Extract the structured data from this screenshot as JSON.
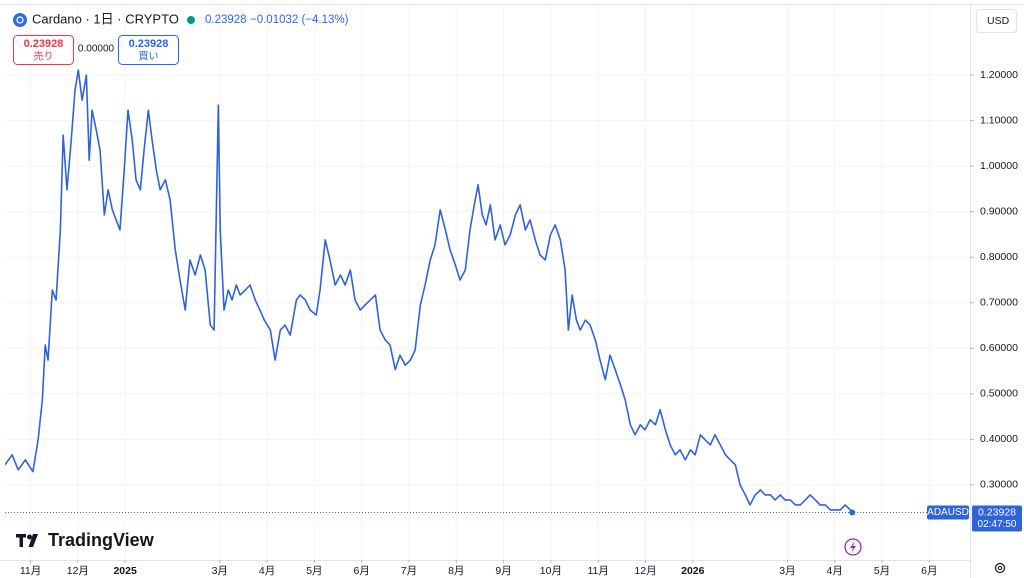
{
  "header": {
    "symbol": "Cardano · 1日 · CRYPTO",
    "price": "0.23928",
    "change": "−0.01032 (−4.13%)",
    "sell_price": "0.23928",
    "sell_label": "売り",
    "spread": "0.00000",
    "buy_price": "0.23928",
    "buy_label": "買い",
    "currency": "USD"
  },
  "branding": "TradingView",
  "chart_data": {
    "type": "line",
    "x": [
      10.46,
      10.61,
      10.74,
      10.89,
      11.05,
      11.16,
      11.25,
      11.31,
      11.37,
      11.46,
      11.54,
      11.63,
      11.69,
      11.77,
      11.86,
      11.94,
      12.01,
      12.09,
      12.18,
      12.24,
      12.3,
      12.39,
      12.47,
      12.56,
      12.64,
      12.73,
      12.81,
      12.89,
      12.98,
      13.06,
      13.15,
      13.23,
      13.32,
      13.4,
      13.49,
      13.57,
      13.66,
      13.74,
      13.85,
      13.95,
      14.06,
      14.16,
      14.27,
      14.37,
      14.48,
      14.59,
      14.69,
      14.8,
      14.88,
      14.97,
      15.01,
      15.09,
      15.18,
      15.26,
      15.35,
      15.43,
      15.54,
      15.64,
      15.75,
      15.85,
      15.94,
      16.07,
      16.17,
      16.28,
      16.38,
      16.49,
      16.62,
      16.7,
      16.81,
      16.91,
      17.04,
      17.12,
      17.23,
      17.33,
      17.44,
      17.55,
      17.65,
      17.76,
      17.86,
      17.97,
      18.07,
      18.18,
      18.29,
      18.39,
      18.5,
      18.6,
      18.71,
      18.81,
      18.92,
      19.03,
      19.13,
      19.24,
      19.34,
      19.45,
      19.55,
      19.66,
      19.77,
      19.87,
      19.98,
      20.08,
      20.19,
      20.29,
      20.4,
      20.46,
      20.55,
      20.63,
      20.72,
      20.82,
      20.93,
      21.03,
      21.14,
      21.25,
      21.35,
      21.46,
      21.56,
      21.67,
      21.77,
      21.88,
      21.99,
      22.09,
      22.2,
      22.3,
      22.37,
      22.45,
      22.54,
      22.62,
      22.73,
      22.83,
      22.94,
      23.04,
      23.15,
      23.25,
      23.36,
      23.47,
      23.57,
      23.68,
      23.78,
      23.89,
      23.99,
      24.1,
      24.21,
      24.31,
      24.42,
      24.52,
      24.63,
      24.73,
      24.84,
      24.95,
      25.05,
      25.16,
      25.26,
      25.37,
      25.47,
      25.58,
      25.69,
      25.79,
      25.9,
      26.0,
      26.11,
      26.21,
      26.32,
      26.43,
      26.53,
      26.64,
      26.74,
      26.85,
      26.95,
      27.06,
      27.17,
      27.27,
      27.38,
      27.48,
      27.59,
      27.69,
      27.8,
      27.91,
      28.01,
      28.12,
      28.22,
      28.33,
      28.37
    ],
    "series": [
      {
        "name": "ADAUSD",
        "color": "#2f63dc",
        "values": [
          0.344,
          0.366,
          0.333,
          0.355,
          0.329,
          0.399,
          0.487,
          0.607,
          0.574,
          0.728,
          0.706,
          0.86,
          1.068,
          0.948,
          1.057,
          1.167,
          1.211,
          1.145,
          1.2,
          1.013,
          1.123,
          1.079,
          1.035,
          0.893,
          0.948,
          0.904,
          0.882,
          0.86,
          0.991,
          1.123,
          1.057,
          0.97,
          0.948,
          1.035,
          1.123,
          1.057,
          0.991,
          0.948,
          0.97,
          0.926,
          0.816,
          0.75,
          0.684,
          0.794,
          0.761,
          0.805,
          0.772,
          0.651,
          0.64,
          1.134,
          0.86,
          0.684,
          0.728,
          0.706,
          0.739,
          0.717,
          0.728,
          0.739,
          0.706,
          0.684,
          0.662,
          0.64,
          0.574,
          0.64,
          0.651,
          0.629,
          0.706,
          0.717,
          0.706,
          0.684,
          0.673,
          0.728,
          0.838,
          0.794,
          0.739,
          0.761,
          0.739,
          0.772,
          0.706,
          0.684,
          0.695,
          0.706,
          0.717,
          0.64,
          0.618,
          0.607,
          0.553,
          0.585,
          0.563,
          0.574,
          0.596,
          0.695,
          0.739,
          0.794,
          0.827,
          0.904,
          0.86,
          0.816,
          0.783,
          0.75,
          0.772,
          0.86,
          0.926,
          0.959,
          0.893,
          0.871,
          0.915,
          0.838,
          0.871,
          0.827,
          0.849,
          0.893,
          0.915,
          0.86,
          0.882,
          0.838,
          0.805,
          0.794,
          0.849,
          0.871,
          0.838,
          0.772,
          0.64,
          0.717,
          0.662,
          0.64,
          0.662,
          0.651,
          0.618,
          0.574,
          0.531,
          0.585,
          0.553,
          0.52,
          0.487,
          0.432,
          0.41,
          0.432,
          0.421,
          0.443,
          0.432,
          0.465,
          0.421,
          0.388,
          0.366,
          0.377,
          0.355,
          0.377,
          0.366,
          0.41,
          0.399,
          0.388,
          0.41,
          0.388,
          0.366,
          0.355,
          0.344,
          0.3,
          0.278,
          0.256,
          0.278,
          0.289,
          0.278,
          0.278,
          0.267,
          0.278,
          0.267,
          0.267,
          0.256,
          0.256,
          0.267,
          0.278,
          0.267,
          0.256,
          0.256,
          0.245,
          0.245,
          0.245,
          0.256,
          0.245,
          0.23928
        ]
      }
    ],
    "xlim": [
      10.46,
      30.86
    ],
    "ylim": [
      0.135,
      1.354
    ],
    "xticks": [
      {
        "value": 11,
        "label": "11月"
      },
      {
        "value": 12,
        "label": "12月"
      },
      {
        "value": 13,
        "label": "2025"
      },
      {
        "value": 15,
        "label": "3月"
      },
      {
        "value": 16,
        "label": "4月"
      },
      {
        "value": 17,
        "label": "5月"
      },
      {
        "value": 18,
        "label": "6月"
      },
      {
        "value": 19,
        "label": "7月"
      },
      {
        "value": 20,
        "label": "8月"
      },
      {
        "value": 21,
        "label": "9月"
      },
      {
        "value": 22,
        "label": "10月"
      },
      {
        "value": 23,
        "label": "11月"
      },
      {
        "value": 24,
        "label": "12月"
      },
      {
        "value": 25,
        "label": "2026"
      },
      {
        "value": 27,
        "label": "3月"
      },
      {
        "value": 28,
        "label": "4月"
      },
      {
        "value": 29,
        "label": "5月"
      },
      {
        "value": 30,
        "label": "6月"
      }
    ],
    "yticks": [
      {
        "value": 0.3,
        "label": "0.30000"
      },
      {
        "value": 0.4,
        "label": "0.40000"
      },
      {
        "value": 0.5,
        "label": "0.50000"
      },
      {
        "value": 0.6,
        "label": "0.60000"
      },
      {
        "value": 0.7,
        "label": "0.70000"
      },
      {
        "value": 0.8,
        "label": "0.80000"
      },
      {
        "value": 0.9,
        "label": "0.90000"
      },
      {
        "value": 1.0,
        "label": "1.00000"
      },
      {
        "value": 1.1,
        "label": "1.10000"
      },
      {
        "value": 1.2,
        "label": "1.20000"
      }
    ],
    "grid": true,
    "last_time": "02:47:50"
  }
}
